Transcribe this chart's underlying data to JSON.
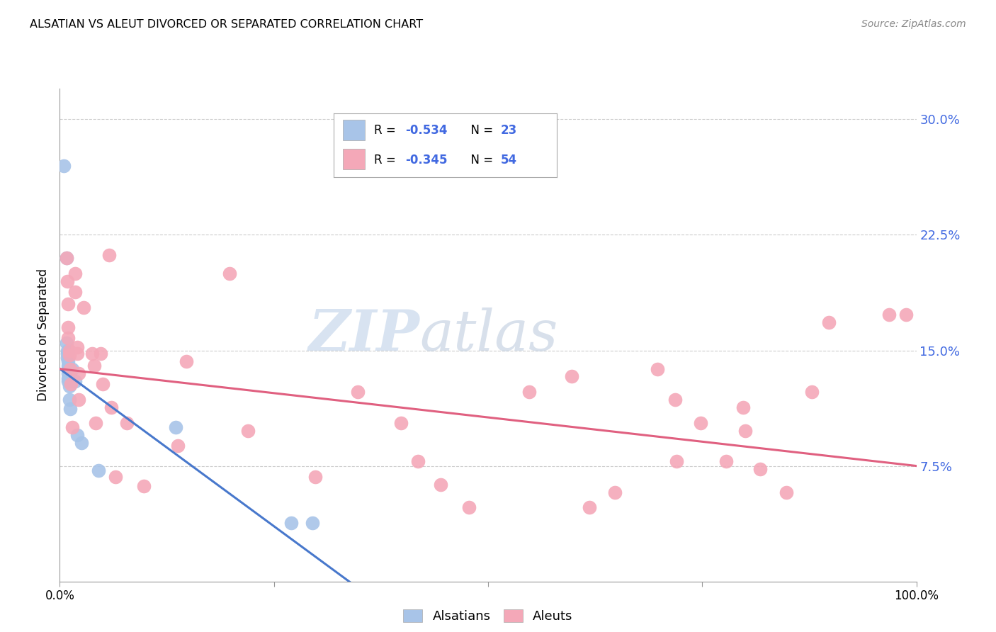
{
  "title": "ALSATIAN VS ALEUT DIVORCED OR SEPARATED CORRELATION CHART",
  "source": "Source: ZipAtlas.com",
  "ylabel": "Divorced or Separated",
  "legend_blue_label": "Alsatians",
  "legend_pink_label": "Aleuts",
  "ytick_labels": [
    "7.5%",
    "15.0%",
    "22.5%",
    "30.0%"
  ],
  "ytick_values": [
    0.075,
    0.15,
    0.225,
    0.3
  ],
  "xtick_positions": [
    0.0,
    0.25,
    0.5,
    0.75,
    1.0
  ],
  "xtick_labels": [
    "0.0%",
    "",
    "",
    "",
    "100.0%"
  ],
  "xlim": [
    0.0,
    1.0
  ],
  "ylim": [
    0.0,
    0.32
  ],
  "blue_scatter_color": "#a8c4e8",
  "pink_scatter_color": "#f4a8b8",
  "blue_line_color": "#4878cc",
  "pink_line_color": "#e06080",
  "blue_r_text": "R = -0.534",
  "blue_n_text": "N = 23",
  "pink_r_text": "R = -0.345",
  "pink_n_text": "N = 54",
  "r_text_color": "#4169e1",
  "n_text_color": "#4169e1",
  "watermark_zip": "ZIP",
  "watermark_atlas": "atlas",
  "grid_color": "#cccccc",
  "spine_color": "#999999",
  "alsatian_points": [
    [
      0.005,
      0.27
    ],
    [
      0.008,
      0.21
    ],
    [
      0.008,
      0.155
    ],
    [
      0.009,
      0.15
    ],
    [
      0.009,
      0.148
    ],
    [
      0.009,
      0.145
    ],
    [
      0.01,
      0.143
    ],
    [
      0.01,
      0.14
    ],
    [
      0.01,
      0.138
    ],
    [
      0.01,
      0.135
    ],
    [
      0.01,
      0.132
    ],
    [
      0.01,
      0.13
    ],
    [
      0.011,
      0.127
    ],
    [
      0.011,
      0.118
    ],
    [
      0.012,
      0.112
    ],
    [
      0.015,
      0.138
    ],
    [
      0.018,
      0.13
    ],
    [
      0.02,
      0.095
    ],
    [
      0.025,
      0.09
    ],
    [
      0.045,
      0.072
    ],
    [
      0.135,
      0.1
    ],
    [
      0.27,
      0.038
    ],
    [
      0.295,
      0.038
    ]
  ],
  "aleut_points": [
    [
      0.008,
      0.21
    ],
    [
      0.009,
      0.195
    ],
    [
      0.01,
      0.18
    ],
    [
      0.01,
      0.165
    ],
    [
      0.01,
      0.158
    ],
    [
      0.011,
      0.15
    ],
    [
      0.011,
      0.147
    ],
    [
      0.012,
      0.138
    ],
    [
      0.013,
      0.128
    ],
    [
      0.015,
      0.1
    ],
    [
      0.018,
      0.2
    ],
    [
      0.018,
      0.188
    ],
    [
      0.02,
      0.152
    ],
    [
      0.02,
      0.148
    ],
    [
      0.022,
      0.135
    ],
    [
      0.022,
      0.118
    ],
    [
      0.028,
      0.178
    ],
    [
      0.038,
      0.148
    ],
    [
      0.04,
      0.14
    ],
    [
      0.042,
      0.103
    ],
    [
      0.048,
      0.148
    ],
    [
      0.05,
      0.128
    ],
    [
      0.058,
      0.212
    ],
    [
      0.06,
      0.113
    ],
    [
      0.065,
      0.068
    ],
    [
      0.078,
      0.103
    ],
    [
      0.098,
      0.062
    ],
    [
      0.138,
      0.088
    ],
    [
      0.148,
      0.143
    ],
    [
      0.198,
      0.2
    ],
    [
      0.22,
      0.098
    ],
    [
      0.298,
      0.068
    ],
    [
      0.348,
      0.123
    ],
    [
      0.398,
      0.103
    ],
    [
      0.418,
      0.078
    ],
    [
      0.445,
      0.063
    ],
    [
      0.478,
      0.048
    ],
    [
      0.548,
      0.123
    ],
    [
      0.598,
      0.133
    ],
    [
      0.618,
      0.048
    ],
    [
      0.648,
      0.058
    ],
    [
      0.698,
      0.138
    ],
    [
      0.718,
      0.118
    ],
    [
      0.72,
      0.078
    ],
    [
      0.748,
      0.103
    ],
    [
      0.778,
      0.078
    ],
    [
      0.798,
      0.113
    ],
    [
      0.8,
      0.098
    ],
    [
      0.818,
      0.073
    ],
    [
      0.848,
      0.058
    ],
    [
      0.878,
      0.123
    ],
    [
      0.898,
      0.168
    ],
    [
      0.968,
      0.173
    ],
    [
      0.988,
      0.173
    ]
  ],
  "blue_line_x0": 0.0,
  "blue_line_y0": 0.138,
  "blue_line_x1": 0.35,
  "blue_line_y1": -0.005,
  "pink_line_x0": 0.0,
  "pink_line_y0": 0.138,
  "pink_line_x1": 1.0,
  "pink_line_y1": 0.075
}
